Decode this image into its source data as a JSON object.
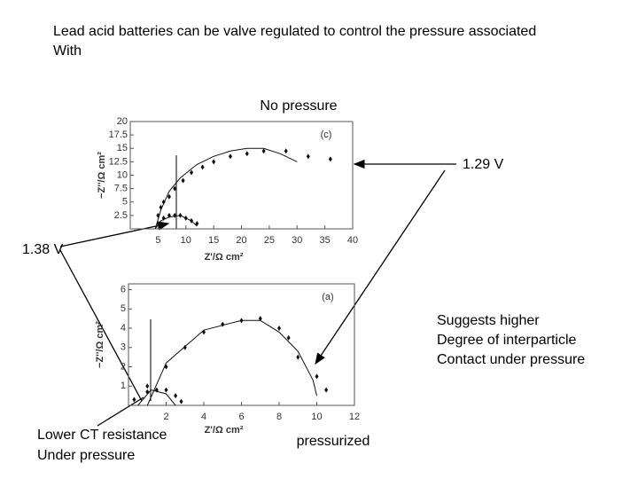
{
  "slide": {
    "title_lines": [
      "Lead acid batteries can be valve regulated to control the pressure associated",
      "With"
    ],
    "label_129": "1.29 V",
    "label_138": "1.38 V",
    "note_lines": [
      "Suggests higher",
      "Degree of interparticle",
      "Contact under pressure"
    ],
    "ct_lines": [
      "Lower CT resistance",
      "Under pressure"
    ]
  },
  "chart_data": [
    {
      "type": "scatter",
      "title": "No pressure",
      "annotation": "(c)",
      "x_label": "Z'/Ω cm²",
      "y_label": "−Z''/Ω cm²",
      "xlim": [
        0,
        40
      ],
      "xticks": [
        5,
        10,
        15,
        20,
        25,
        30,
        35,
        40
      ],
      "ylim": [
        0,
        20
      ],
      "yticks": [
        2.5,
        5,
        7.5,
        10,
        12.5,
        15,
        17.5,
        20
      ],
      "series": [
        {
          "mode": "markers",
          "color": "#111111",
          "x": [
            5,
            5.5,
            6,
            7,
            8,
            9.5,
            11,
            13,
            15,
            18,
            21,
            24,
            28,
            32,
            36
          ],
          "values": [
            2.5,
            4,
            5,
            6,
            7.5,
            9,
            10.5,
            11.5,
            12.5,
            13.5,
            14,
            14.5,
            14.5,
            13.5,
            13
          ]
        },
        {
          "mode": "line",
          "color": "#111111",
          "x": [
            4.5,
            5.5,
            7,
            9,
            12,
            15,
            18,
            21,
            24,
            27,
            30
          ],
          "values": [
            0,
            3.5,
            7,
            9.5,
            12,
            13.5,
            14.5,
            15,
            15,
            14,
            12.5
          ]
        },
        {
          "mode": "markers",
          "color": "#111111",
          "x": [
            5,
            6,
            7,
            8,
            9,
            10,
            11,
            12
          ],
          "values": [
            1,
            2,
            2.5,
            2.5,
            2.5,
            2,
            1.5,
            1
          ]
        },
        {
          "mode": "line",
          "color": "#111111",
          "x": [
            4.5,
            5.5,
            7,
            9,
            11,
            12
          ],
          "values": [
            0,
            1.5,
            2.2,
            2.5,
            1.5,
            0.5
          ]
        }
      ]
    },
    {
      "type": "scatter",
      "title": "pressurized",
      "annotation": "(a)",
      "x_label": "Z'/Ω cm²",
      "y_label": "−Z''/Ω cm²",
      "xlim": [
        0,
        12
      ],
      "xticks": [
        2,
        4,
        6,
        8,
        10,
        12
      ],
      "ylim": [
        0,
        6.3
      ],
      "yticks": [
        1,
        2,
        3,
        4,
        5,
        6
      ],
      "series": [
        {
          "mode": "markers",
          "color": "#111111",
          "x": [
            1,
            2,
            3,
            4,
            5,
            6,
            7,
            8,
            8.5,
            9,
            10,
            10.5
          ],
          "values": [
            1,
            2,
            3,
            3.8,
            4.2,
            4.4,
            4.5,
            4,
            3.5,
            2.5,
            1.5,
            0.8
          ]
        },
        {
          "mode": "line",
          "color": "#111111",
          "x": [
            1,
            2,
            4,
            6,
            7,
            8,
            9,
            9.8,
            10
          ],
          "values": [
            0,
            2.2,
            3.9,
            4.4,
            4.4,
            3.8,
            2.8,
            1.3,
            0.5
          ]
        },
        {
          "mode": "markers",
          "color": "#111111",
          "x": [
            0.3,
            1,
            1.5,
            2,
            2.5,
            2.8
          ],
          "values": [
            0.3,
            0.7,
            0.8,
            0.8,
            0.5,
            0.2
          ]
        },
        {
          "mode": "line",
          "color": "#111111",
          "x": [
            0.5,
            1.2,
            2,
            2.5
          ],
          "values": [
            0,
            0.8,
            0.6,
            0
          ]
        }
      ]
    }
  ]
}
